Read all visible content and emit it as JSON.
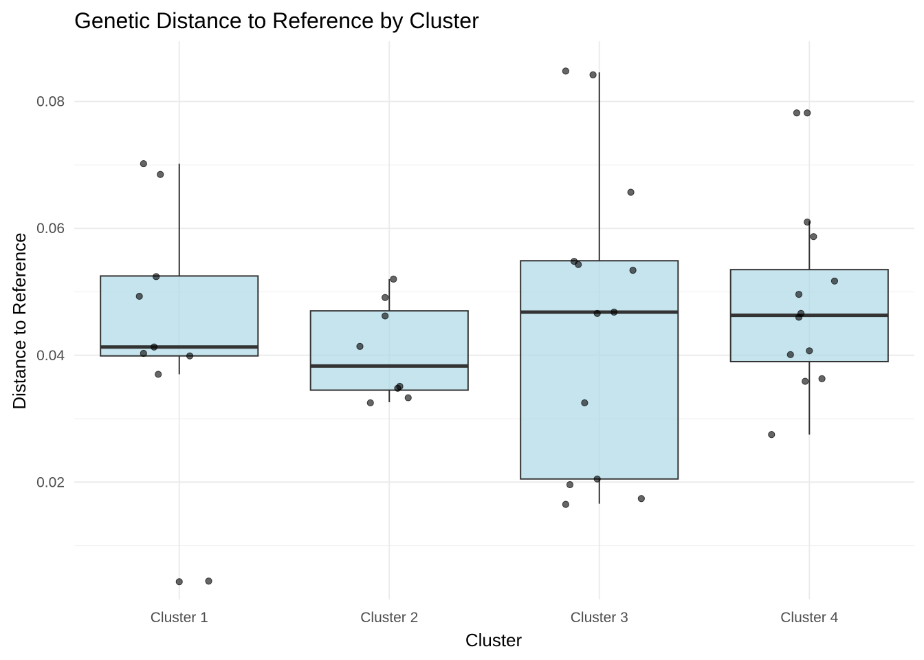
{
  "chart_data": {
    "type": "box",
    "title": "Genetic Distance to Reference by Cluster",
    "xlabel": "Cluster",
    "ylabel": "Distance to Reference",
    "ylim": [
      0.0015,
      0.0895
    ],
    "yticks": [
      0.02,
      0.04,
      0.06,
      0.08
    ],
    "ytick_labels": [
      "0.02",
      "0.04",
      "0.06",
      "0.08"
    ],
    "grid": true,
    "box_fill": "#add8e6",
    "line_color": "#333333",
    "point_color": "#000000",
    "categories": [
      "Cluster 1",
      "Cluster 2",
      "Cluster 3",
      "Cluster 4"
    ],
    "boxes": [
      {
        "q1": 0.0399,
        "median": 0.0413,
        "q3": 0.0525,
        "whisker_low": 0.037,
        "whisker_high": 0.0702
      },
      {
        "q1": 0.0345,
        "median": 0.0383,
        "q3": 0.047,
        "whisker_low": 0.0326,
        "whisker_high": 0.052
      },
      {
        "q1": 0.0205,
        "median": 0.0468,
        "q3": 0.0549,
        "whisker_low": 0.0166,
        "whisker_high": 0.0846
      },
      {
        "q1": 0.039,
        "median": 0.0463,
        "q3": 0.0535,
        "whisker_low": 0.0275,
        "whisker_high": 0.0611
      }
    ],
    "points": [
      [
        {
          "jitter": -0.17,
          "y": 0.0702
        },
        {
          "jitter": -0.09,
          "y": 0.0685
        },
        {
          "jitter": -0.11,
          "y": 0.0524
        },
        {
          "jitter": -0.19,
          "y": 0.0493
        },
        {
          "jitter": -0.12,
          "y": 0.0413
        },
        {
          "jitter": -0.17,
          "y": 0.0403
        },
        {
          "jitter": 0.05,
          "y": 0.0399
        },
        {
          "jitter": -0.1,
          "y": 0.037
        },
        {
          "jitter": 0.0,
          "y": 0.0043
        },
        {
          "jitter": 0.14,
          "y": 0.0044
        }
      ],
      [
        {
          "jitter": 0.02,
          "y": 0.052
        },
        {
          "jitter": -0.02,
          "y": 0.0491
        },
        {
          "jitter": -0.02,
          "y": 0.0462
        },
        {
          "jitter": -0.14,
          "y": 0.0414
        },
        {
          "jitter": 0.05,
          "y": 0.0351
        },
        {
          "jitter": 0.04,
          "y": 0.0348
        },
        {
          "jitter": 0.09,
          "y": 0.0333
        },
        {
          "jitter": -0.09,
          "y": 0.0325
        }
      ],
      [
        {
          "jitter": -0.16,
          "y": 0.0848
        },
        {
          "jitter": -0.03,
          "y": 0.0842
        },
        {
          "jitter": 0.15,
          "y": 0.0657
        },
        {
          "jitter": -0.12,
          "y": 0.0548
        },
        {
          "jitter": -0.1,
          "y": 0.0543
        },
        {
          "jitter": 0.16,
          "y": 0.0534
        },
        {
          "jitter": 0.07,
          "y": 0.0468
        },
        {
          "jitter": -0.01,
          "y": 0.0466
        },
        {
          "jitter": -0.07,
          "y": 0.0325
        },
        {
          "jitter": -0.01,
          "y": 0.0205
        },
        {
          "jitter": -0.14,
          "y": 0.0196
        },
        {
          "jitter": 0.2,
          "y": 0.0174
        },
        {
          "jitter": -0.16,
          "y": 0.0165
        }
      ],
      [
        {
          "jitter": -0.06,
          "y": 0.0782
        },
        {
          "jitter": -0.01,
          "y": 0.0782
        },
        {
          "jitter": -0.01,
          "y": 0.061
        },
        {
          "jitter": 0.02,
          "y": 0.0587
        },
        {
          "jitter": 0.12,
          "y": 0.0517
        },
        {
          "jitter": -0.05,
          "y": 0.0496
        },
        {
          "jitter": -0.04,
          "y": 0.0466
        },
        {
          "jitter": -0.05,
          "y": 0.046
        },
        {
          "jitter": 0.0,
          "y": 0.0407
        },
        {
          "jitter": -0.09,
          "y": 0.0401
        },
        {
          "jitter": 0.06,
          "y": 0.0363
        },
        {
          "jitter": -0.02,
          "y": 0.0359
        },
        {
          "jitter": -0.18,
          "y": 0.0275
        }
      ]
    ]
  }
}
